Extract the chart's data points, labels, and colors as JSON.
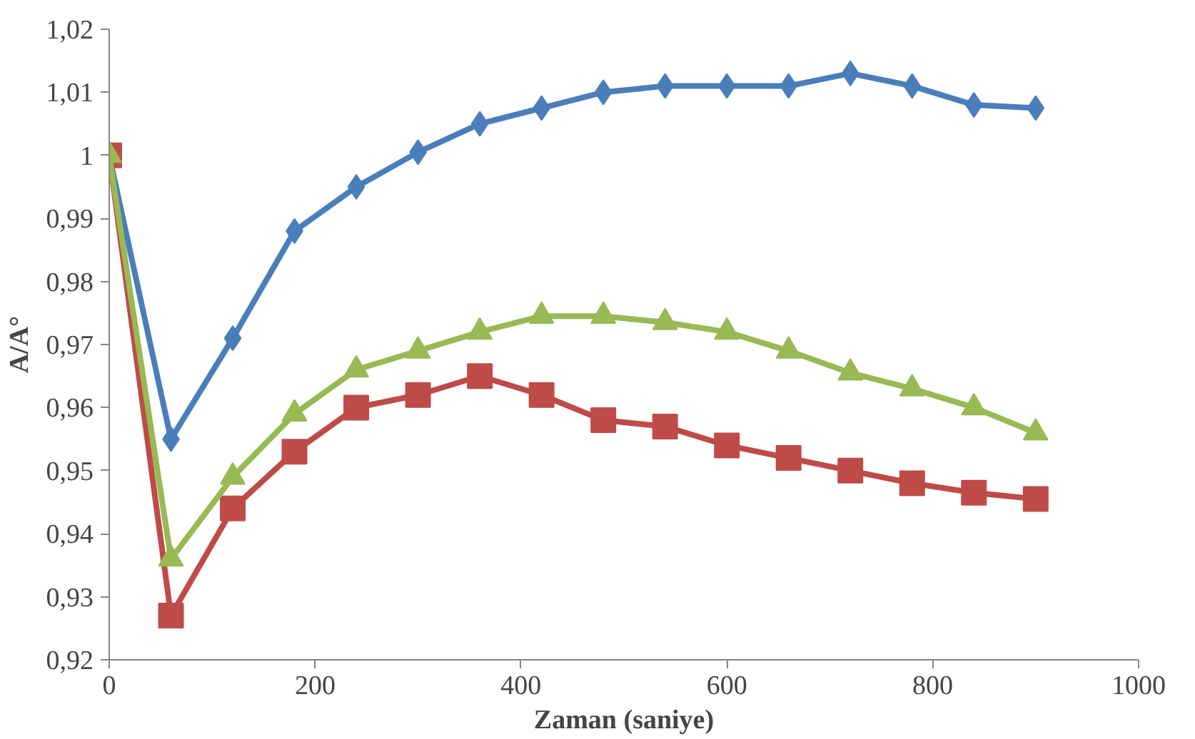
{
  "chart_data": {
    "type": "line",
    "xlabel": "Zaman (saniye)",
    "ylabel": "A/A°",
    "x": [
      0,
      60,
      120,
      180,
      240,
      300,
      360,
      420,
      480,
      540,
      600,
      660,
      720,
      780,
      840,
      900
    ],
    "series": [
      {
        "color": "#4a7ebb",
        "marker": "diamond",
        "values": [
          1.0,
          0.955,
          0.971,
          0.988,
          0.995,
          1.0005,
          1.005,
          1.0075,
          1.01,
          1.011,
          1.011,
          1.011,
          1.013,
          1.011,
          1.008,
          1.0075
        ]
      },
      {
        "color": "#be4b48",
        "marker": "square",
        "values": [
          1.0,
          0.927,
          0.944,
          0.953,
          0.96,
          0.962,
          0.965,
          0.962,
          0.958,
          0.957,
          0.954,
          0.952,
          0.95,
          0.948,
          0.9465,
          0.9455
        ]
      },
      {
        "color": "#98b954",
        "marker": "triangle",
        "values": [
          1.0,
          0.936,
          0.949,
          0.959,
          0.966,
          0.969,
          0.972,
          0.9745,
          0.9745,
          0.9735,
          0.972,
          0.969,
          0.9655,
          0.963,
          0.96,
          0.956
        ]
      }
    ],
    "xlim": [
      0,
      1000
    ],
    "xticks": [
      0,
      200,
      400,
      600,
      800,
      1000
    ],
    "ylim": [
      0.92,
      1.02
    ],
    "yticks": [
      {
        "value": 0.92,
        "label": "0,92"
      },
      {
        "value": 0.93,
        "label": "0,93"
      },
      {
        "value": 0.94,
        "label": "0,94"
      },
      {
        "value": 0.95,
        "label": "0,95"
      },
      {
        "value": 0.96,
        "label": "0,96"
      },
      {
        "value": 0.97,
        "label": "0,97"
      },
      {
        "value": 0.98,
        "label": "0,98"
      },
      {
        "value": 0.99,
        "label": "0,99"
      },
      {
        "value": 1,
        "label": "1"
      },
      {
        "value": 1.01,
        "label": "1,01"
      },
      {
        "value": 1.02,
        "label": "1,02"
      }
    ],
    "grid": false,
    "line_style": "solid"
  }
}
